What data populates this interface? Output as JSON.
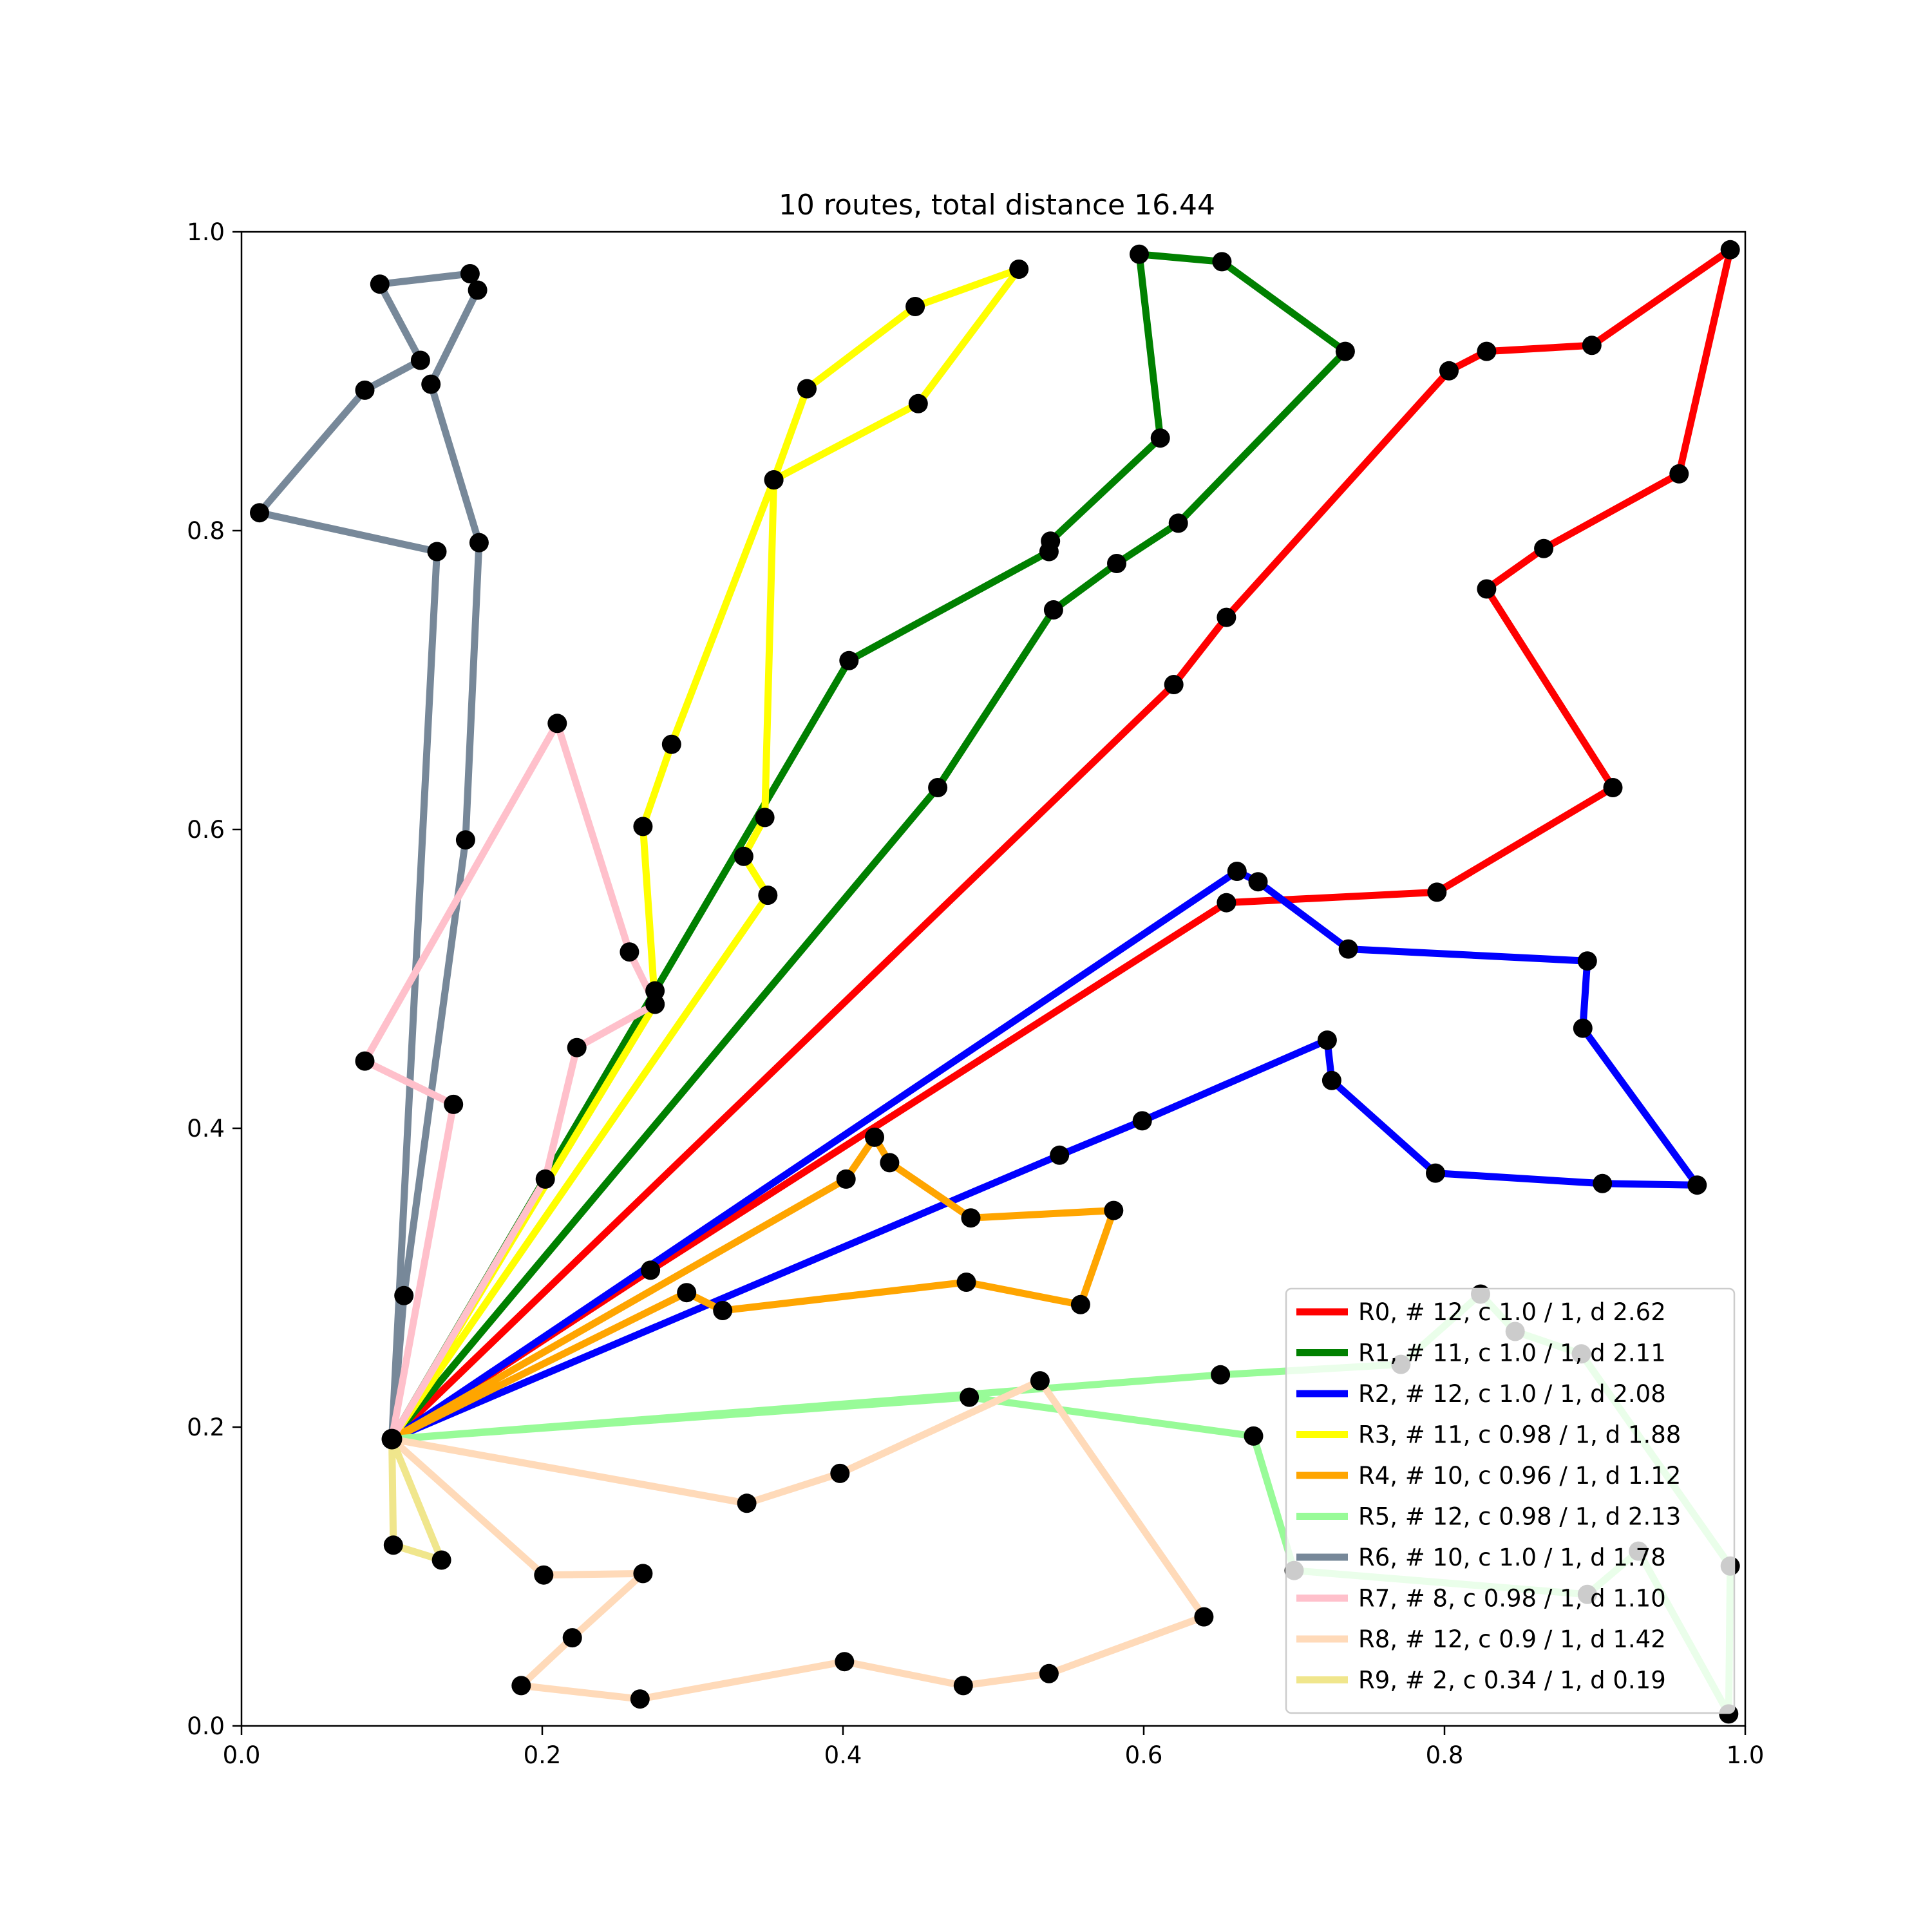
{
  "chart_data": {
    "type": "line",
    "title": "10 routes, total distance 16.44",
    "xlabel": "",
    "ylabel": "",
    "xlim": [
      0,
      1
    ],
    "ylim": [
      0,
      1
    ],
    "x_ticks": [
      "0.0",
      "0.2",
      "0.4",
      "0.6",
      "0.8",
      "1.0"
    ],
    "y_ticks": [
      "0.0",
      "0.2",
      "0.4",
      "0.6",
      "0.8",
      "1.0"
    ],
    "grid": false,
    "legend_position": "lower-right",
    "marker_color": "#000000",
    "depot": [
      0.1,
      0.192
    ],
    "series": [
      {
        "name": "R0, # 12, c 1.0 / 1, d 2.62",
        "color": "#ff0000",
        "points": [
          [
            0.1,
            0.192
          ],
          [
            0.272,
            0.305
          ],
          [
            0.655,
            0.551
          ],
          [
            0.795,
            0.558
          ],
          [
            0.912,
            0.628
          ],
          [
            0.828,
            0.761
          ],
          [
            0.866,
            0.788
          ],
          [
            0.956,
            0.838
          ],
          [
            0.99,
            0.988
          ],
          [
            0.898,
            0.924
          ],
          [
            0.828,
            0.92
          ],
          [
            0.803,
            0.907
          ],
          [
            0.655,
            0.742
          ],
          [
            0.62,
            0.697
          ],
          [
            0.1,
            0.192
          ]
        ]
      },
      {
        "name": "R1, # 11, c 1.0 / 1, d 2.11",
        "color": "#008000",
        "points": [
          [
            0.1,
            0.192
          ],
          [
            0.275,
            0.492
          ],
          [
            0.404,
            0.713
          ],
          [
            0.537,
            0.786
          ],
          [
            0.538,
            0.793
          ],
          [
            0.611,
            0.862
          ],
          [
            0.597,
            0.985
          ],
          [
            0.652,
            0.98
          ],
          [
            0.734,
            0.92
          ],
          [
            0.623,
            0.805
          ],
          [
            0.582,
            0.778
          ],
          [
            0.54,
            0.747
          ],
          [
            0.463,
            0.628
          ],
          [
            0.1,
            0.192
          ]
        ]
      },
      {
        "name": "R2, # 12, c 1.0 / 1, d 2.08",
        "color": "#0000ff",
        "points": [
          [
            0.1,
            0.192
          ],
          [
            0.662,
            0.572
          ],
          [
            0.676,
            0.565
          ],
          [
            0.736,
            0.52
          ],
          [
            0.895,
            0.512
          ],
          [
            0.892,
            0.467
          ],
          [
            0.968,
            0.362
          ],
          [
            0.905,
            0.363
          ],
          [
            0.794,
            0.37
          ],
          [
            0.725,
            0.432
          ],
          [
            0.722,
            0.459
          ],
          [
            0.599,
            0.405
          ],
          [
            0.544,
            0.382
          ],
          [
            0.1,
            0.192
          ]
        ]
      },
      {
        "name": "R3, # 11, c 0.98 / 1, d 1.88",
        "color": "#ffff00",
        "points": [
          [
            0.1,
            0.192
          ],
          [
            0.275,
            0.483
          ],
          [
            0.267,
            0.602
          ],
          [
            0.286,
            0.657
          ],
          [
            0.354,
            0.834
          ],
          [
            0.376,
            0.895
          ],
          [
            0.448,
            0.95
          ],
          [
            0.517,
            0.975
          ],
          [
            0.45,
            0.885
          ],
          [
            0.354,
            0.834
          ],
          [
            0.348,
            0.608
          ],
          [
            0.334,
            0.582
          ],
          [
            0.35,
            0.556
          ],
          [
            0.1,
            0.192
          ]
        ]
      },
      {
        "name": "R4, # 10, c 0.96 / 1, d 1.12",
        "color": "#ffa500",
        "points": [
          [
            0.1,
            0.192
          ],
          [
            0.402,
            0.366
          ],
          [
            0.421,
            0.394
          ],
          [
            0.431,
            0.377
          ],
          [
            0.485,
            0.34
          ],
          [
            0.58,
            0.345
          ],
          [
            0.558,
            0.282
          ],
          [
            0.482,
            0.297
          ],
          [
            0.32,
            0.278
          ],
          [
            0.296,
            0.29
          ],
          [
            0.1,
            0.192
          ]
        ]
      },
      {
        "name": "R5, # 12, c 0.98 / 1, d 2.13",
        "color": "#98fb98",
        "points": [
          [
            0.1,
            0.192
          ],
          [
            0.651,
            0.235
          ],
          [
            0.771,
            0.242
          ],
          [
            0.824,
            0.289
          ],
          [
            0.847,
            0.264
          ],
          [
            0.891,
            0.249
          ],
          [
            0.99,
            0.107
          ],
          [
            0.989,
            0.008
          ],
          [
            0.929,
            0.117
          ],
          [
            0.895,
            0.088
          ],
          [
            0.7,
            0.104
          ],
          [
            0.673,
            0.194
          ],
          [
            0.484,
            0.22
          ],
          [
            0.1,
            0.192
          ]
        ]
      },
      {
        "name": "R6, # 10, c 1.0 / 1, d 1.78",
        "color": "#778899",
        "points": [
          [
            0.1,
            0.192
          ],
          [
            0.108,
            0.288
          ],
          [
            0.149,
            0.593
          ],
          [
            0.158,
            0.792
          ],
          [
            0.126,
            0.898
          ],
          [
            0.157,
            0.961
          ],
          [
            0.152,
            0.972
          ],
          [
            0.092,
            0.965
          ],
          [
            0.119,
            0.914
          ],
          [
            0.082,
            0.894
          ],
          [
            0.012,
            0.812
          ],
          [
            0.13,
            0.786
          ],
          [
            0.1,
            0.192
          ]
        ]
      },
      {
        "name": "R7, # 8, c 0.98 / 1, d 1.10",
        "color": "#ffc0cb",
        "points": [
          [
            0.1,
            0.192
          ],
          [
            0.141,
            0.416
          ],
          [
            0.082,
            0.445
          ],
          [
            0.21,
            0.671
          ],
          [
            0.258,
            0.518
          ],
          [
            0.275,
            0.483
          ],
          [
            0.223,
            0.454
          ],
          [
            0.202,
            0.366
          ],
          [
            0.1,
            0.192
          ]
        ]
      },
      {
        "name": "R8, # 12, c 0.9 / 1, d 1.42",
        "color": "#ffdab9",
        "points": [
          [
            0.1,
            0.192
          ],
          [
            0.336,
            0.149
          ],
          [
            0.398,
            0.169
          ],
          [
            0.531,
            0.231
          ],
          [
            0.64,
            0.073
          ],
          [
            0.537,
            0.035
          ],
          [
            0.48,
            0.027
          ],
          [
            0.401,
            0.043
          ],
          [
            0.265,
            0.018
          ],
          [
            0.186,
            0.027
          ],
          [
            0.22,
            0.059
          ],
          [
            0.267,
            0.102
          ],
          [
            0.201,
            0.101
          ],
          [
            0.1,
            0.192
          ]
        ]
      },
      {
        "name": "R9, # 2, c 0.34 / 1, d 0.19",
        "color": "#f0e68c",
        "points": [
          [
            0.1,
            0.192
          ],
          [
            0.101,
            0.121
          ],
          [
            0.133,
            0.111
          ],
          [
            0.1,
            0.192
          ]
        ]
      }
    ]
  }
}
